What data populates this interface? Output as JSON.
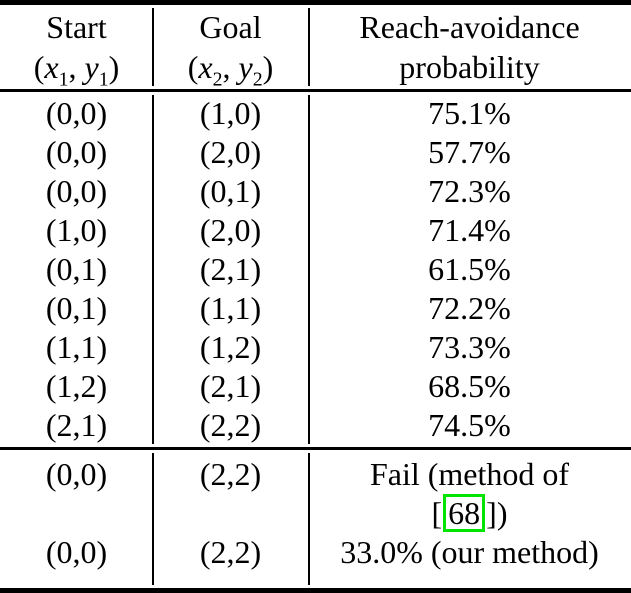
{
  "page": {
    "background": "#ffffff",
    "text_color": "#000000",
    "rule_color": "#000000",
    "citation_border_color": "#00e400"
  },
  "header": {
    "start": {
      "title": "Start",
      "math": {
        "open": "(",
        "x": "x",
        "xsub": "1",
        "sep": ", ",
        "y": "y",
        "ysub": "1",
        "close": ")"
      }
    },
    "goal": {
      "title": "Goal",
      "math": {
        "open": "(",
        "x": "x",
        "xsub": "2",
        "sep": ", ",
        "y": "y",
        "ysub": "2",
        "close": ")"
      }
    },
    "probability": {
      "line1": "Reach-avoidance",
      "line2": "probability"
    }
  },
  "rows": [
    {
      "start": "(0,0)",
      "goal": "(1,0)",
      "prob": "75.1%"
    },
    {
      "start": "(0,0)",
      "goal": "(2,0)",
      "prob": "57.7%"
    },
    {
      "start": "(0,0)",
      "goal": "(0,1)",
      "prob": "72.3%"
    },
    {
      "start": "(1,0)",
      "goal": "(2,0)",
      "prob": "71.4%"
    },
    {
      "start": "(0,1)",
      "goal": "(2,1)",
      "prob": "61.5%"
    },
    {
      "start": "(0,1)",
      "goal": "(1,1)",
      "prob": "72.2%"
    },
    {
      "start": "(1,1)",
      "goal": "(1,2)",
      "prob": "73.3%"
    },
    {
      "start": "(1,2)",
      "goal": "(2,1)",
      "prob": "68.5%"
    },
    {
      "start": "(2,1)",
      "goal": "(2,2)",
      "prob": "74.5%"
    }
  ],
  "comparison": {
    "fail": {
      "start": "(0,0)",
      "goal": "(2,2)",
      "result_line1": "Fail (method of",
      "citation": {
        "open_bracket": "[",
        "ref": "68",
        "close_brackets": "])"
      }
    },
    "ours": {
      "start": "(0,0)",
      "goal": "(2,2)",
      "result": "33.0% (our method)"
    }
  }
}
